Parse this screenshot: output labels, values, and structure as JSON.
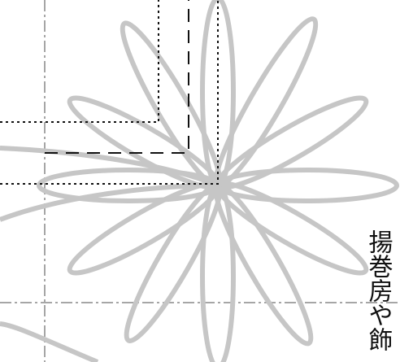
{
  "label": {
    "text": "揚巻房や飾"
  }
}
